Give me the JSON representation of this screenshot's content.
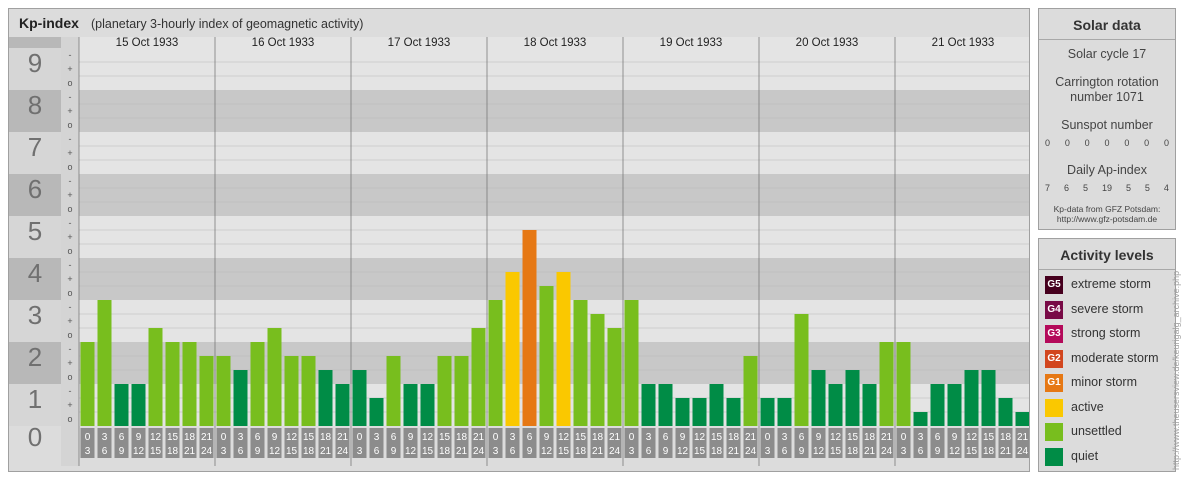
{
  "kp": {
    "title": "Kp-index",
    "subtitle": "(planetary 3-hourly index of geomagnetic activity)"
  },
  "chart_data": {
    "type": "bar",
    "ylim": [
      0,
      9
    ],
    "y_ticks": [
      "0",
      "1",
      "2",
      "3",
      "4",
      "5",
      "6",
      "7",
      "8",
      "9"
    ],
    "y_subticks": [
      "o",
      "+",
      "-"
    ],
    "days": [
      "15 Oct 1933",
      "16 Oct 1933",
      "17 Oct 1933",
      "18 Oct 1933",
      "19 Oct 1933",
      "20 Oct 1933",
      "21 Oct 1933"
    ],
    "hour_labels": [
      [
        "0",
        "3"
      ],
      [
        "3",
        "6"
      ],
      [
        "6",
        "9"
      ],
      [
        "9",
        "12"
      ],
      [
        "12",
        "15"
      ],
      [
        "15",
        "18"
      ],
      [
        "18",
        "21"
      ],
      [
        "21",
        "24"
      ]
    ],
    "values": [
      [
        2.0,
        3.0,
        1.0,
        1.0,
        2.333,
        2.0,
        2.0,
        1.667
      ],
      [
        1.667,
        1.333,
        2.0,
        2.333,
        1.667,
        1.667,
        1.333,
        1.0
      ],
      [
        1.333,
        0.667,
        1.667,
        1.0,
        1.0,
        1.667,
        1.667,
        2.333
      ],
      [
        3.0,
        3.667,
        4.667,
        3.333,
        3.667,
        3.0,
        2.667,
        2.333
      ],
      [
        3.0,
        1.0,
        1.0,
        0.667,
        0.667,
        1.0,
        0.667,
        1.667
      ],
      [
        0.667,
        0.667,
        2.667,
        1.333,
        1.0,
        1.333,
        1.0,
        2.0
      ],
      [
        2.0,
        0.333,
        1.0,
        1.0,
        1.333,
        1.333,
        0.667,
        0.333
      ]
    ],
    "level_colors": {
      "quiet": "#008c46",
      "unsettled": "#78be1e",
      "active": "#fac800",
      "G1": "#e67814",
      "G2": "#d2461e",
      "G3": "#b40a5a",
      "G4": "#780a46",
      "G5": "#46001e"
    }
  },
  "solar": {
    "title": "Solar data",
    "cycle": "Solar cycle 17",
    "carrington_line1": "Carrington rotation",
    "carrington_line2": "number 1071",
    "sunspot_title": "Sunspot number",
    "sunspot_values": [
      "0",
      "0",
      "0",
      "0",
      "0",
      "0",
      "0"
    ],
    "ap_title": "Daily Ap-index",
    "ap_values": [
      "7",
      "6",
      "5",
      "19",
      "5",
      "5",
      "4"
    ],
    "credit_line1": "Kp-data from GFZ Potsdam:",
    "credit_line2": "http://www.gfz-potsdam.de"
  },
  "activity": {
    "title": "Activity levels",
    "levels": [
      {
        "badge": "G5",
        "label": "extreme storm",
        "color": "#46001e"
      },
      {
        "badge": "G4",
        "label": "severe storm",
        "color": "#780a46"
      },
      {
        "badge": "G3",
        "label": "strong storm",
        "color": "#b40a5a"
      },
      {
        "badge": "G2",
        "label": "moderate storm",
        "color": "#d2461e"
      },
      {
        "badge": "G1",
        "label": "minor storm",
        "color": "#e67814"
      },
      {
        "badge": "",
        "label": "active",
        "color": "#fac800"
      },
      {
        "badge": "",
        "label": "unsettled",
        "color": "#78be1e"
      },
      {
        "badge": "",
        "label": "quiet",
        "color": "#008c46"
      }
    ]
  },
  "watermark": "http://www.theusersview.de/keurigalg_archive.php"
}
